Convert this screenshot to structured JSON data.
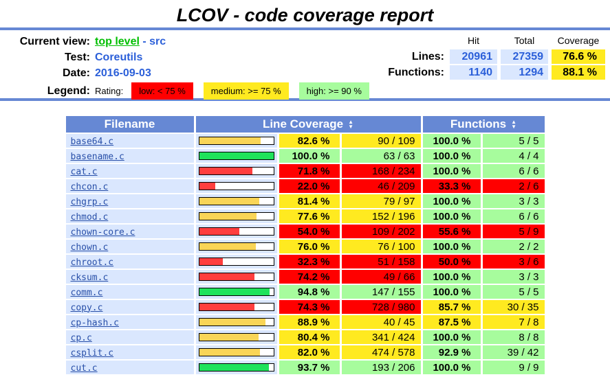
{
  "page_title": "LCOV - code coverage report",
  "info": {
    "current_view_label": "Current view:",
    "current_view_link": "top level",
    "current_view_separator": "-",
    "current_view_sub": "src",
    "test_label": "Test:",
    "test_value": "Coreutils",
    "date_label": "Date:",
    "date_value": "2016-09-03",
    "legend_label": "Legend:",
    "rating_label": "Rating:",
    "legend_low": "low: < 75 %",
    "legend_medium": "medium: >= 75 %",
    "legend_high": "high: >= 90 %"
  },
  "summary": {
    "col_hit": "Hit",
    "col_total": "Total",
    "col_coverage": "Coverage",
    "lines_label": "Lines:",
    "lines_hit": "20961",
    "lines_total": "27359",
    "lines_coverage": "76.6 %",
    "functions_label": "Functions:",
    "functions_hit": "1140",
    "functions_total": "1294",
    "functions_coverage": "88.1 %"
  },
  "table": {
    "headers": {
      "filename": "Filename",
      "line_coverage": "Line Coverage",
      "functions": "Functions"
    },
    "rows": [
      {
        "filename": "base64.c",
        "line_pct": "82.6 %",
        "line_pct_value": 82.6,
        "line_ratio": "90 / 109",
        "line_class": "med",
        "func_pct": "100.0 %",
        "func_ratio": "5 / 5",
        "func_class": "hi"
      },
      {
        "filename": "basename.c",
        "line_pct": "100.0 %",
        "line_pct_value": 100.0,
        "line_ratio": "63 / 63",
        "line_class": "hi",
        "func_pct": "100.0 %",
        "func_ratio": "4 / 4",
        "func_class": "hi"
      },
      {
        "filename": "cat.c",
        "line_pct": "71.8 %",
        "line_pct_value": 71.8,
        "line_ratio": "168 / 234",
        "line_class": "lo",
        "func_pct": "100.0 %",
        "func_ratio": "6 / 6",
        "func_class": "hi"
      },
      {
        "filename": "chcon.c",
        "line_pct": "22.0 %",
        "line_pct_value": 22.0,
        "line_ratio": "46 / 209",
        "line_class": "lo",
        "func_pct": "33.3 %",
        "func_ratio": "2 / 6",
        "func_class": "lo"
      },
      {
        "filename": "chgrp.c",
        "line_pct": "81.4 %",
        "line_pct_value": 81.4,
        "line_ratio": "79 / 97",
        "line_class": "med",
        "func_pct": "100.0 %",
        "func_ratio": "3 / 3",
        "func_class": "hi"
      },
      {
        "filename": "chmod.c",
        "line_pct": "77.6 %",
        "line_pct_value": 77.6,
        "line_ratio": "152 / 196",
        "line_class": "med",
        "func_pct": "100.0 %",
        "func_ratio": "6 / 6",
        "func_class": "hi"
      },
      {
        "filename": "chown-core.c",
        "line_pct": "54.0 %",
        "line_pct_value": 54.0,
        "line_ratio": "109 / 202",
        "line_class": "lo",
        "func_pct": "55.6 %",
        "func_ratio": "5 / 9",
        "func_class": "lo"
      },
      {
        "filename": "chown.c",
        "line_pct": "76.0 %",
        "line_pct_value": 76.0,
        "line_ratio": "76 / 100",
        "line_class": "med",
        "func_pct": "100.0 %",
        "func_ratio": "2 / 2",
        "func_class": "hi"
      },
      {
        "filename": "chroot.c",
        "line_pct": "32.3 %",
        "line_pct_value": 32.3,
        "line_ratio": "51 / 158",
        "line_class": "lo",
        "func_pct": "50.0 %",
        "func_ratio": "3 / 6",
        "func_class": "lo"
      },
      {
        "filename": "cksum.c",
        "line_pct": "74.2 %",
        "line_pct_value": 74.2,
        "line_ratio": "49 / 66",
        "line_class": "lo",
        "func_pct": "100.0 %",
        "func_ratio": "3 / 3",
        "func_class": "hi"
      },
      {
        "filename": "comm.c",
        "line_pct": "94.8 %",
        "line_pct_value": 94.8,
        "line_ratio": "147 / 155",
        "line_class": "hi",
        "func_pct": "100.0 %",
        "func_ratio": "5 / 5",
        "func_class": "hi"
      },
      {
        "filename": "copy.c",
        "line_pct": "74.3 %",
        "line_pct_value": 74.3,
        "line_ratio": "728 / 980",
        "line_class": "lo",
        "func_pct": "85.7 %",
        "func_ratio": "30 / 35",
        "func_class": "med"
      },
      {
        "filename": "cp-hash.c",
        "line_pct": "88.9 %",
        "line_pct_value": 88.9,
        "line_ratio": "40 / 45",
        "line_class": "med",
        "func_pct": "87.5 %",
        "func_ratio": "7 / 8",
        "func_class": "med"
      },
      {
        "filename": "cp.c",
        "line_pct": "80.4 %",
        "line_pct_value": 80.4,
        "line_ratio": "341 / 424",
        "line_class": "med",
        "func_pct": "100.0 %",
        "func_ratio": "8 / 8",
        "func_class": "hi"
      },
      {
        "filename": "csplit.c",
        "line_pct": "82.0 %",
        "line_pct_value": 82.0,
        "line_ratio": "474 / 578",
        "line_class": "med",
        "func_pct": "92.9 %",
        "func_ratio": "39 / 42",
        "func_class": "hi"
      },
      {
        "filename": "cut.c",
        "line_pct": "93.7 %",
        "line_pct_value": 93.7,
        "line_ratio": "193 / 206",
        "line_class": "hi",
        "func_pct": "100.0 %",
        "func_ratio": "9 / 9",
        "func_class": "hi"
      }
    ]
  },
  "colors": {
    "header_blue": "#6688D4",
    "cell_light_blue": "#DAE7FE",
    "low_red": "#FF0000",
    "medium_yellow": "#FFEA20",
    "high_green": "#A7FC9D",
    "bar_low": "#FF3E3E",
    "bar_medium": "#F9D557",
    "bar_high": "#1FE35B",
    "link_green": "#00BE00",
    "value_blue": "#2B5FD9",
    "file_link_blue": "#284FA8"
  }
}
